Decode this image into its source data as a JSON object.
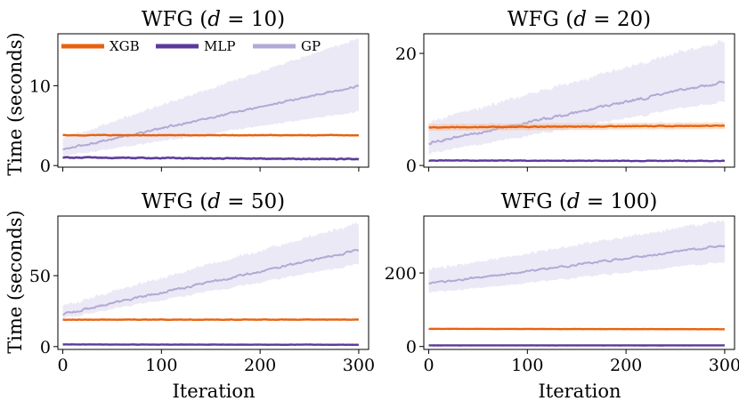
{
  "figure": {
    "ylabel": "Time (seconds)",
    "xlabel": "Iteration"
  },
  "colors": {
    "XGB": "#e8620e",
    "MLP": "#5b3a9b",
    "GP": "#b3a9d6",
    "GP_band": "#e5e1f3",
    "XGB_band": "#f5b98f"
  },
  "legend": [
    {
      "name": "XGB"
    },
    {
      "name": "MLP"
    },
    {
      "name": "GP"
    }
  ],
  "chart_data": [
    {
      "type": "line",
      "title_prefix": "WFG (",
      "title_var": "d",
      "title_suffix": " = 10)",
      "xlim": [
        -5,
        310
      ],
      "ylim": [
        -0.2,
        16.5
      ],
      "xticks": [
        0,
        100,
        200,
        300
      ],
      "yticks": [
        0,
        10
      ],
      "series": [
        {
          "name": "XGB",
          "start": 3.8,
          "end": 3.8,
          "band_lo": 0.15,
          "band_hi": 0.15,
          "noise": 0.05
        },
        {
          "name": "MLP",
          "start": 1.0,
          "end": 0.8,
          "band_lo": 0.2,
          "band_hi": 0.2,
          "noise": 0.08
        },
        {
          "name": "GP",
          "start": 2.0,
          "end": 10.0,
          "band_lo_start": 0.8,
          "band_lo_end": 3.2,
          "band_hi_start": 1.2,
          "band_hi_end": 5.8,
          "noise": 0.18
        }
      ]
    },
    {
      "type": "line",
      "title_prefix": "WFG (",
      "title_var": "d",
      "title_suffix": " = 20)",
      "xlim": [
        -5,
        310
      ],
      "ylim": [
        -0.3,
        23.5
      ],
      "xticks": [
        0,
        100,
        200,
        300
      ],
      "yticks": [
        0,
        20
      ],
      "series": [
        {
          "name": "XGB",
          "start": 6.8,
          "end": 7.1,
          "band_lo": 0.6,
          "band_hi": 0.6,
          "noise": 0.1
        },
        {
          "name": "MLP",
          "start": 0.9,
          "end": 0.8,
          "band_lo": 0.15,
          "band_hi": 0.15,
          "noise": 0.08
        },
        {
          "name": "GP",
          "start": 4.0,
          "end": 15.0,
          "band_lo_start": 1.8,
          "band_lo_end": 3.5,
          "band_hi_start": 3.5,
          "band_hi_end": 7.0,
          "noise": 0.35
        }
      ]
    },
    {
      "type": "line",
      "title_prefix": "WFG (",
      "title_var": "d",
      "title_suffix": " = 50)",
      "xlim": [
        -5,
        310
      ],
      "ylim": [
        -2,
        92
      ],
      "xticks": [
        0,
        100,
        200,
        300
      ],
      "yticks": [
        0,
        50
      ],
      "series": [
        {
          "name": "XGB",
          "start": 19.0,
          "end": 19.0,
          "band_lo": 0.6,
          "band_hi": 0.6,
          "noise": 0.2
        },
        {
          "name": "MLP",
          "start": 1.5,
          "end": 1.3,
          "band_lo": 0.3,
          "band_hi": 0.3,
          "noise": 0.15
        },
        {
          "name": "GP",
          "start": 23.0,
          "end": 68.0,
          "band_lo_start": 3.0,
          "band_lo_end": 10.0,
          "band_hi_start": 5.0,
          "band_hi_end": 18.0,
          "noise": 1.1
        }
      ]
    },
    {
      "type": "line",
      "title_prefix": "WFG (",
      "title_var": "d",
      "title_suffix": " = 100)",
      "xlim": [
        -5,
        310
      ],
      "ylim": [
        -8,
        355
      ],
      "xticks": [
        0,
        100,
        200,
        300
      ],
      "yticks": [
        0,
        200
      ],
      "series": [
        {
          "name": "XGB",
          "start": 48.0,
          "end": 47.0,
          "band_lo": 1.5,
          "band_hi": 1.5,
          "noise": 0.3
        },
        {
          "name": "MLP",
          "start": 3.0,
          "end": 3.0,
          "band_lo": 0.5,
          "band_hi": 0.5,
          "noise": 0.2
        },
        {
          "name": "GP",
          "start": 170.0,
          "end": 275.0,
          "band_lo_start": 25.0,
          "band_lo_end": 45.0,
          "band_hi_start": 35.0,
          "band_hi_end": 65.0,
          "noise": 4.0
        }
      ]
    }
  ]
}
